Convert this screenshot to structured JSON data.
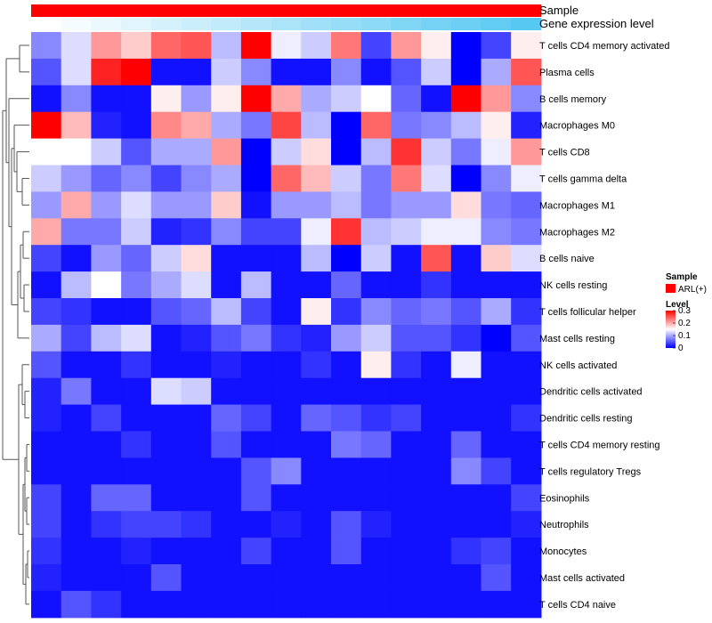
{
  "chart_data": {
    "type": "heatmap",
    "title": "",
    "annotation_rows": [
      {
        "name": "Sample",
        "type": "categorical",
        "values": [
          "ARL(+)",
          "ARL(+)",
          "ARL(+)",
          "ARL(+)",
          "ARL(+)",
          "ARL(+)",
          "ARL(+)",
          "ARL(+)",
          "ARL(+)",
          "ARL(+)",
          "ARL(+)",
          "ARL(+)",
          "ARL(+)",
          "ARL(+)",
          "ARL(+)",
          "ARL(+)",
          "ARL(+)"
        ]
      },
      {
        "name": "Gene expression level",
        "type": "continuous",
        "values": [
          0.0,
          0.06,
          0.12,
          0.18,
          0.25,
          0.31,
          0.37,
          0.43,
          0.5,
          0.56,
          0.62,
          0.68,
          0.75,
          0.81,
          0.87,
          0.93,
          1.0
        ]
      }
    ],
    "row_labels": [
      "T cells CD4 memory activated",
      "Plasma cells",
      "B cells memory",
      "Macrophages M0",
      "T cells CD8",
      "T cells gamma delta",
      "Macrophages M1",
      "Macrophages M2",
      "B cells naive",
      "NK cells resting",
      "T cells follicular helper",
      "Mast cells resting",
      "NK cells activated",
      "Dendritic cells activated",
      "Dendritic cells resting",
      "T cells CD4 memory resting",
      "T cells regulatory  Tregs",
      "Eosinophils",
      "Neutrophils",
      "Monocytes",
      "Mast cells activated",
      "T cells CD4 naive"
    ],
    "n_columns": 17,
    "values": [
      [
        0.08,
        0.13,
        0.21,
        0.18,
        0.24,
        0.25,
        0.11,
        0.3,
        0.14,
        0.12,
        0.23,
        0.04,
        0.21,
        0.16,
        0.0,
        0.04,
        0.16
      ],
      [
        0.05,
        0.13,
        0.28,
        0.3,
        0.01,
        0.01,
        0.12,
        0.08,
        0.01,
        0.01,
        0.08,
        0.01,
        0.05,
        0.12,
        0.0,
        0.1,
        0.25
      ],
      [
        0.01,
        0.08,
        0.01,
        0.01,
        0.16,
        0.09,
        0.16,
        0.3,
        0.2,
        0.1,
        0.12,
        0.15,
        0.06,
        0.01,
        0.3,
        0.21,
        0.08
      ],
      [
        0.3,
        0.19,
        0.02,
        0.01,
        0.22,
        0.2,
        0.1,
        0.07,
        0.26,
        0.11,
        0.0,
        0.24,
        0.07,
        0.08,
        0.11,
        0.16,
        0.02
      ],
      [
        0.15,
        0.15,
        0.12,
        0.05,
        0.1,
        0.1,
        0.21,
        0.0,
        0.12,
        0.17,
        0.0,
        0.11,
        0.27,
        0.12,
        0.07,
        0.14,
        0.21
      ],
      [
        0.12,
        0.09,
        0.06,
        0.08,
        0.04,
        0.08,
        0.1,
        0.0,
        0.24,
        0.19,
        0.12,
        0.07,
        0.23,
        0.13,
        0.0,
        0.08,
        0.14
      ],
      [
        0.09,
        0.2,
        0.09,
        0.13,
        0.09,
        0.09,
        0.18,
        0.01,
        0.09,
        0.09,
        0.11,
        0.07,
        0.09,
        0.09,
        0.17,
        0.07,
        0.06
      ],
      [
        0.2,
        0.07,
        0.07,
        0.12,
        0.02,
        0.03,
        0.08,
        0.04,
        0.04,
        0.14,
        0.27,
        0.11,
        0.12,
        0.14,
        0.14,
        0.08,
        0.07
      ],
      [
        0.04,
        0.01,
        0.09,
        0.06,
        0.12,
        0.17,
        0.01,
        0.01,
        0.01,
        0.11,
        0.0,
        0.12,
        0.01,
        0.25,
        0.01,
        0.18,
        0.13
      ],
      [
        0.01,
        0.11,
        0.15,
        0.07,
        0.1,
        0.13,
        0.01,
        0.11,
        0.01,
        0.01,
        0.06,
        0.01,
        0.01,
        0.03,
        0.01,
        0.01,
        0.01
      ],
      [
        0.04,
        0.03,
        0.01,
        0.01,
        0.05,
        0.06,
        0.11,
        0.04,
        0.01,
        0.16,
        0.03,
        0.08,
        0.06,
        0.07,
        0.05,
        0.1,
        0.03
      ],
      [
        0.1,
        0.04,
        0.11,
        0.13,
        0.01,
        0.02,
        0.05,
        0.07,
        0.03,
        0.02,
        0.09,
        0.12,
        0.05,
        0.05,
        0.03,
        0.0,
        0.05
      ],
      [
        0.05,
        0.01,
        0.01,
        0.03,
        0.01,
        0.01,
        0.02,
        0.01,
        0.01,
        0.03,
        0.01,
        0.16,
        0.03,
        0.01,
        0.14,
        0.01,
        0.01
      ],
      [
        0.02,
        0.07,
        0.01,
        0.01,
        0.13,
        0.12,
        0.01,
        0.01,
        0.01,
        0.01,
        0.01,
        0.01,
        0.01,
        0.01,
        0.01,
        0.01,
        0.01
      ],
      [
        0.02,
        0.01,
        0.04,
        0.01,
        0.01,
        0.01,
        0.06,
        0.04,
        0.01,
        0.06,
        0.05,
        0.03,
        0.04,
        0.01,
        0.01,
        0.01,
        0.03
      ],
      [
        0.01,
        0.01,
        0.01,
        0.03,
        0.01,
        0.01,
        0.05,
        0.01,
        0.01,
        0.01,
        0.07,
        0.06,
        0.01,
        0.01,
        0.06,
        0.01,
        0.01
      ],
      [
        0.01,
        0.01,
        0.01,
        0.01,
        0.01,
        0.01,
        0.01,
        0.05,
        0.08,
        0.01,
        0.01,
        0.01,
        0.01,
        0.01,
        0.08,
        0.04,
        0.01
      ],
      [
        0.04,
        0.01,
        0.06,
        0.06,
        0.01,
        0.01,
        0.01,
        0.05,
        0.01,
        0.01,
        0.01,
        0.01,
        0.01,
        0.01,
        0.01,
        0.01,
        0.04
      ],
      [
        0.04,
        0.01,
        0.03,
        0.04,
        0.04,
        0.03,
        0.01,
        0.01,
        0.02,
        0.01,
        0.05,
        0.02,
        0.01,
        0.01,
        0.01,
        0.01,
        0.02
      ],
      [
        0.03,
        0.01,
        0.01,
        0.02,
        0.01,
        0.01,
        0.01,
        0.04,
        0.01,
        0.01,
        0.05,
        0.01,
        0.01,
        0.01,
        0.03,
        0.04,
        0.01
      ],
      [
        0.02,
        0.01,
        0.01,
        0.01,
        0.05,
        0.01,
        0.01,
        0.01,
        0.01,
        0.01,
        0.01,
        0.01,
        0.01,
        0.01,
        0.01,
        0.05,
        0.01
      ],
      [
        0.01,
        0.05,
        0.03,
        0.01,
        0.01,
        0.01,
        0.01,
        0.01,
        0.01,
        0.01,
        0.01,
        0.01,
        0.01,
        0.01,
        0.01,
        0.01,
        0.01
      ]
    ],
    "color_scale": {
      "min": 0,
      "mid": 0.15,
      "max": 0.3,
      "low_color": "#0000FF",
      "mid_color": "#FFFFFF",
      "high_color": "#FF0000"
    },
    "legend": {
      "sample_title": "Sample",
      "sample_entries": [
        {
          "label": "ARL(+)",
          "color": "#FF0000"
        }
      ],
      "level_title": "Level",
      "level_ticks": [
        0.3,
        0.2,
        0.1,
        0
      ],
      "position": "right"
    },
    "dendrogram": "left, rows clustered"
  },
  "colors": {
    "sample_annotation": "#FF0000",
    "expression_low": "#FFFFFF",
    "expression_high": "#56C8F2"
  }
}
